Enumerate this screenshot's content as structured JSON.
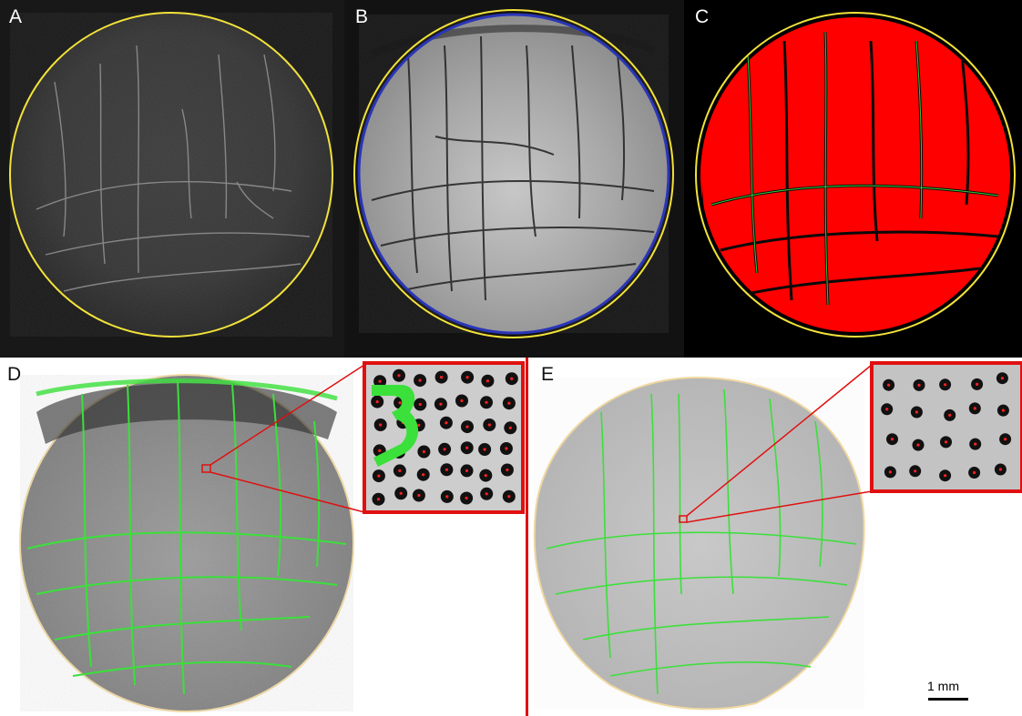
{
  "figure": {
    "panels": [
      {
        "id": "A",
        "label": "A",
        "description_type": "raw-grayscale-image-with-boundary"
      },
      {
        "id": "B",
        "label": "B",
        "description_type": "enhanced-grayscale-image-with-boundary"
      },
      {
        "id": "C",
        "label": "C",
        "description_type": "segmentation-mask"
      },
      {
        "id": "D",
        "label": "D",
        "description_type": "detection-overlay-with-inset"
      },
      {
        "id": "E",
        "label": "E",
        "description_type": "detection-overlay-with-inset"
      }
    ],
    "scale_bar": {
      "label": "1 mm"
    }
  },
  "colors": {
    "boundary_yellow": "#f2e23a",
    "boundary_blue": "#2a35b8",
    "mask_red": "#ff0000",
    "detection_green": "#3be03b",
    "zoom_red": "#e01010",
    "marker_red": "#ff2020"
  }
}
